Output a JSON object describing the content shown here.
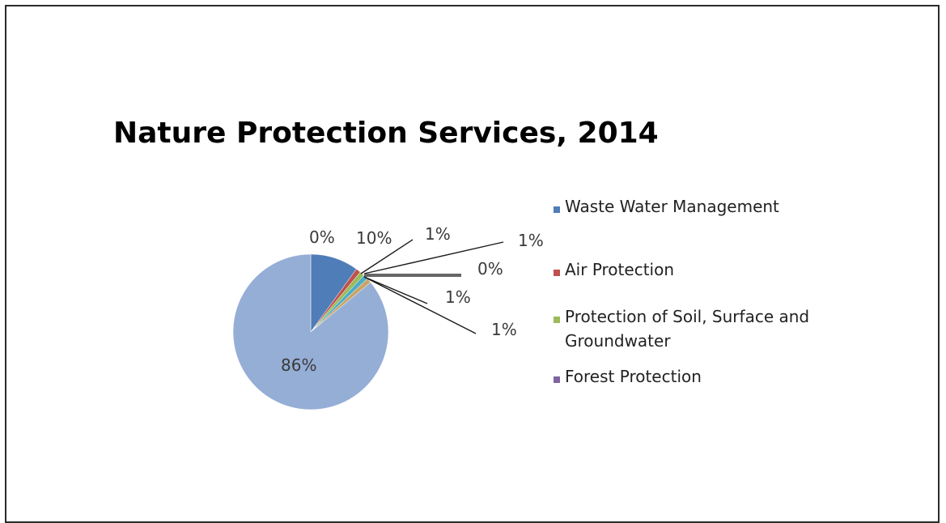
{
  "chart_data": {
    "type": "pie",
    "title": "Nature Protection Services, 2014",
    "slices": [
      {
        "label": "Waste Water Management",
        "value": 10,
        "data_label": "10%",
        "color": "#4f7db8"
      },
      {
        "label": "Air Protection",
        "value": 1,
        "data_label": "1%",
        "color": "#c0504d"
      },
      {
        "label": "Protection of Soil, Surface and Groundwater",
        "value": 1,
        "data_label": "1%",
        "color": "#9bbb59"
      },
      {
        "label": "Forest Protection",
        "value": 0,
        "data_label": "0%",
        "color": "#8064a2"
      },
      {
        "label": "",
        "value": 1,
        "data_label": "1%",
        "color": "#4bacc6"
      },
      {
        "label": "",
        "value": 1,
        "data_label": "1%",
        "color": "#c8a46a"
      },
      {
        "label": "",
        "value": 86,
        "data_label": "86%",
        "color": "#95aed6"
      },
      {
        "label": "",
        "value": 0,
        "data_label": "0%",
        "color": "#bfbfbf"
      }
    ],
    "legend": {
      "placement": "right",
      "entries": [
        {
          "label": "Waste Water Management",
          "color": "#4f7db8"
        },
        {
          "label": "Air Protection",
          "color": "#c0504d"
        },
        {
          "label": "Protection of Soil, Surface and Groundwater",
          "color": "#9bbb59"
        },
        {
          "label": "Forest Protection",
          "color": "#8064a2"
        }
      ]
    }
  }
}
